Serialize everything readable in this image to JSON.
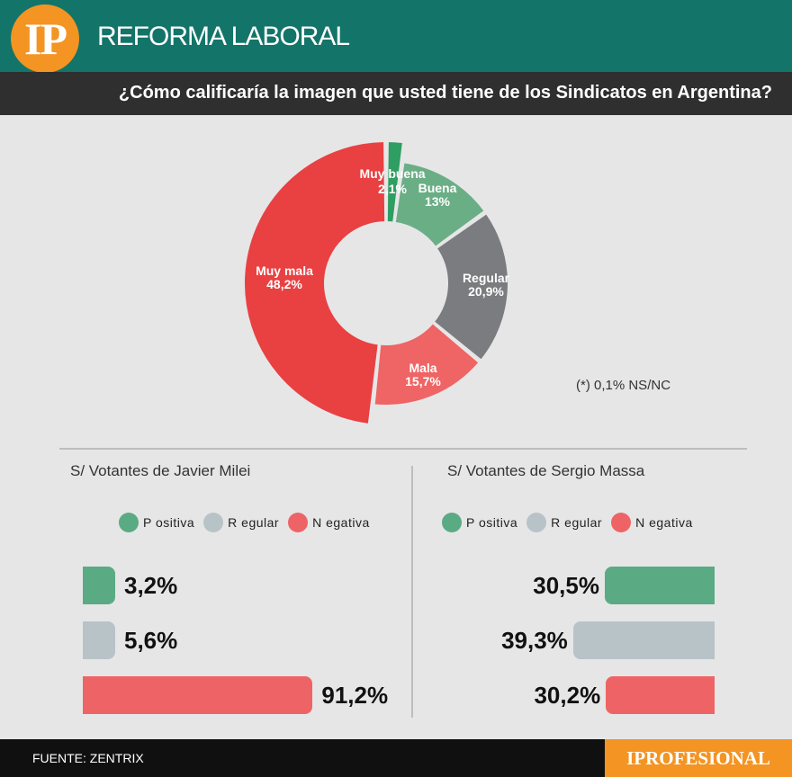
{
  "header": {
    "logo": "IP",
    "title": "REFORMA LABORAL"
  },
  "question": "¿Cómo calificaría la imagen que usted tiene de los Sindicatos en Argentina?",
  "note": "(*) 0,1% NS/NC",
  "colors": {
    "positive": "#5aab84",
    "regular": "#b8c3c8",
    "negative": "#ee6466",
    "muy_buena": "#2e9e62",
    "buena": "#6aae86",
    "regular_donut": "#7a7c7f",
    "mala": "#ef6465",
    "muy_mala": "#e94042"
  },
  "chart_data": [
    {
      "type": "pie",
      "title": "¿Cómo calificaría la imagen que usted tiene de los Sindicatos en Argentina?",
      "categories": [
        "Muy buena",
        "Buena",
        "Regular",
        "Mala",
        "Muy mala"
      ],
      "values": [
        2.1,
        13,
        20.9,
        15.7,
        48.2
      ],
      "value_labels": [
        "2,1%",
        "13%",
        "20,9%",
        "15,7%",
        "48,2%"
      ],
      "annotation": "(*) 0,1% NS/NC"
    },
    {
      "type": "bar",
      "title": "S/ Votantes de Javier Milei",
      "categories": [
        "P ositiva",
        "R egular",
        "N egativa"
      ],
      "values": [
        3.2,
        5.6,
        91.2
      ],
      "value_labels": [
        "3,2%",
        "5,6%",
        "91,2%"
      ]
    },
    {
      "type": "bar",
      "title": "S/ Votantes de Sergio Massa",
      "categories": [
        "P ositiva",
        "R egular",
        "N egativa"
      ],
      "values": [
        30.5,
        39.3,
        30.2
      ],
      "value_labels": [
        "30,5%",
        "39,3%",
        "30,2%"
      ]
    }
  ],
  "footer": {
    "source": "FUENTE: ZENTRIX",
    "brand": "IPROFESIONAL"
  }
}
